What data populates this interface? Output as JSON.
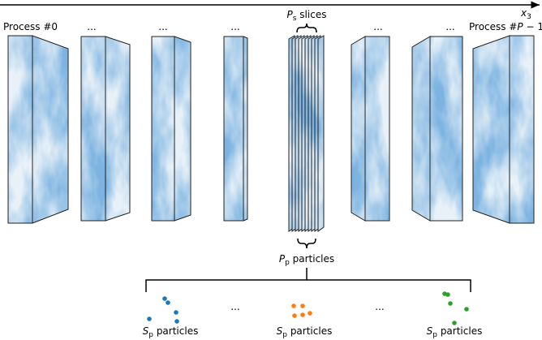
{
  "axis": {
    "symbol": "x",
    "subscript": "3"
  },
  "processes": {
    "first": "Process #0",
    "last_prefix": "Process #",
    "last_symbol": "P",
    "last_suffix": " − 1",
    "gaps": [
      "...",
      "...",
      "...",
      "...",
      "..."
    ]
  },
  "slices": {
    "symbol": "P",
    "subscript": "s",
    "text": " slices"
  },
  "particles": {
    "symbol": "P",
    "subscript": "p",
    "text": " particles"
  },
  "groups": [
    {
      "symbol": "S",
      "subscript": "p",
      "text": " particles"
    },
    {
      "symbol": "S",
      "subscript": "p",
      "text": " particles"
    },
    {
      "symbol": "S",
      "subscript": "p",
      "text": " particles"
    }
  ],
  "group_gaps": [
    "...",
    "..."
  ]
}
